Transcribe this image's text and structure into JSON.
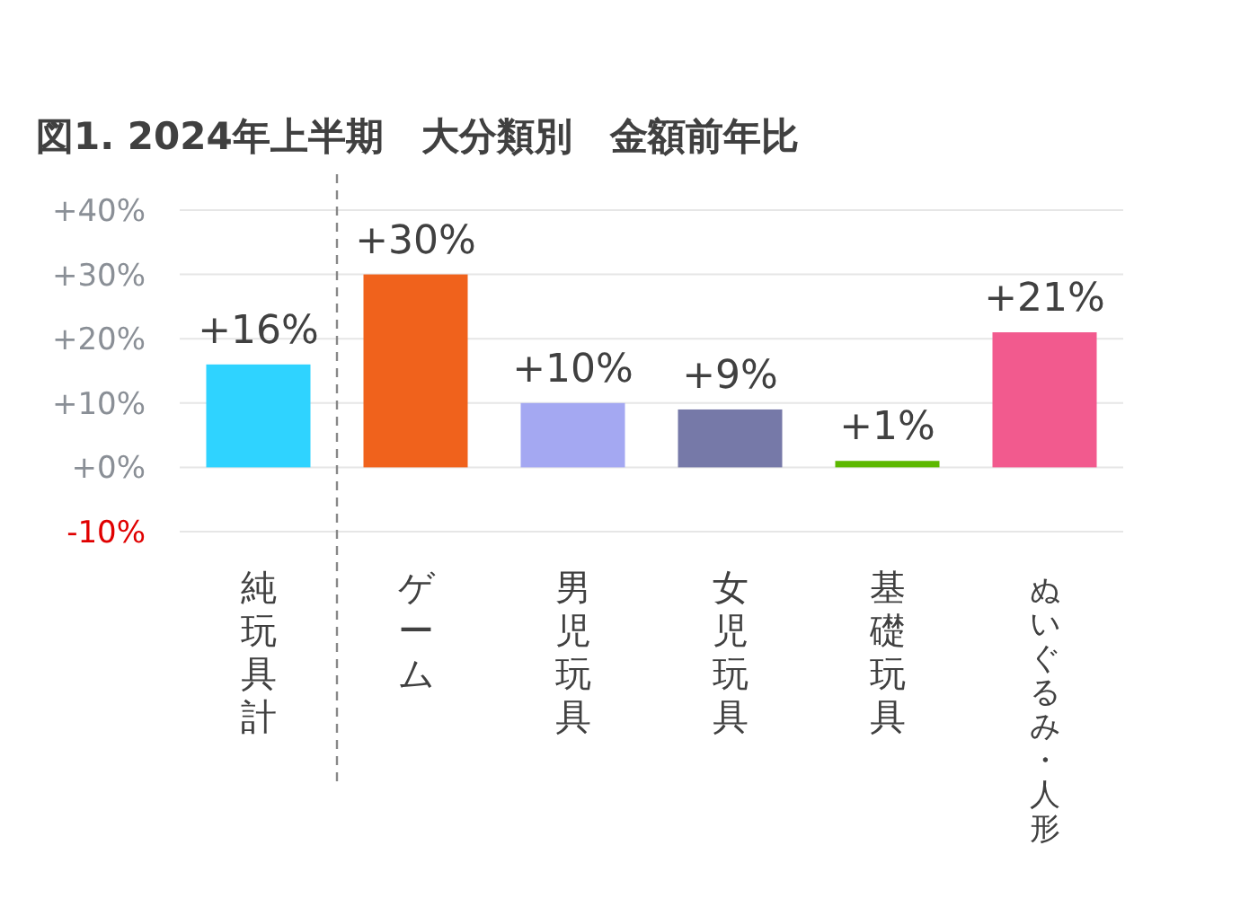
{
  "chart_data": {
    "type": "bar",
    "title": "図1. 2024年上半期　大分類別　金額前年比",
    "categories": [
      "純玩具計",
      "ゲーム",
      "男児玩具",
      "女児玩具",
      "基礎玩具",
      "ぬいぐるみ・人形"
    ],
    "values": [
      16,
      30,
      10,
      9,
      1,
      21
    ],
    "colors": [
      "#2fd3ff",
      "#f0621c",
      "#a4a8f2",
      "#7679a8",
      "#5cb800",
      "#f25a8e"
    ],
    "value_labels": [
      "+16%",
      "+30%",
      "+10%",
      "+9%",
      "+1%",
      "+21%"
    ],
    "ylim": [
      -10,
      40
    ],
    "yticks": [
      {
        "value": -10,
        "label": "-10%"
      },
      {
        "value": 0,
        "label": "+0%"
      },
      {
        "value": 10,
        "label": "+10%"
      },
      {
        "value": 20,
        "label": "+20%"
      },
      {
        "value": 30,
        "label": "+30%"
      },
      {
        "value": 40,
        "label": "+40%"
      }
    ],
    "grid": "y"
  }
}
